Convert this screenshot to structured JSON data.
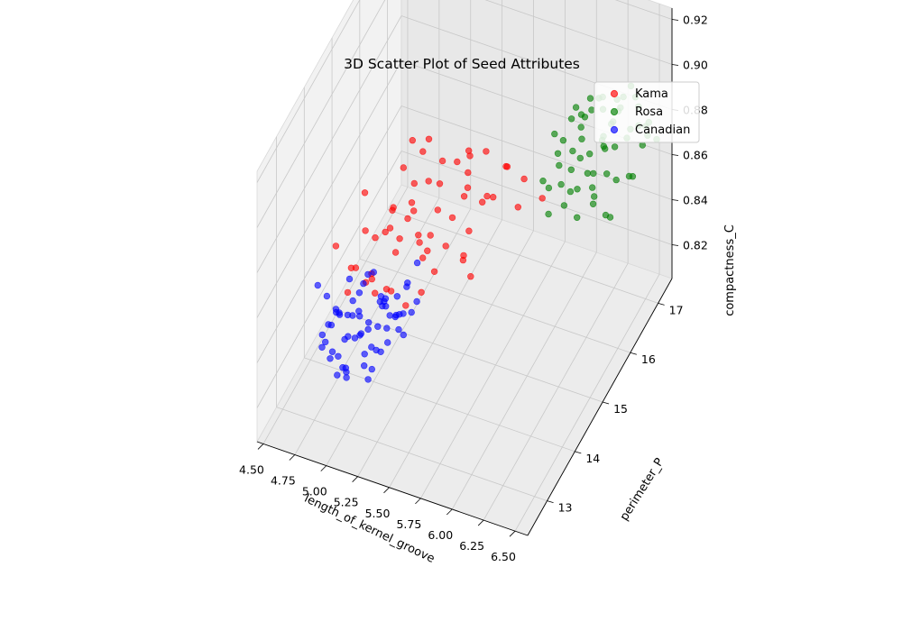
{
  "chart_data": {
    "type": "scatter",
    "dimensions": 3,
    "title": "3D Scatter Plot of Seed Attributes",
    "xlabel": "length_of_kernel_groove",
    "ylabel": "perimeter_P",
    "zlabel": "compactness_C",
    "x_ticks": [
      "4.50",
      "4.75",
      "5.00",
      "5.25",
      "5.50",
      "5.75",
      "6.00",
      "6.25",
      "6.50"
    ],
    "y_ticks": [
      "13",
      "14",
      "15",
      "16",
      "17"
    ],
    "z_ticks": [
      "0.82",
      "0.84",
      "0.86",
      "0.88",
      "0.90",
      "0.92"
    ],
    "xlim": [
      4.45,
      6.6
    ],
    "ylim": [
      12.3,
      17.5
    ],
    "zlim": [
      0.805,
      0.925
    ],
    "grid": true,
    "legend_position": "top-right",
    "series": [
      {
        "name": "Kama",
        "color": "#ff0000",
        "points": [
          [
            5.22,
            13.8,
            0.871
          ],
          [
            5.15,
            14.0,
            0.884
          ],
          [
            5.3,
            14.3,
            0.866
          ],
          [
            5.05,
            13.5,
            0.861
          ],
          [
            5.4,
            14.5,
            0.878
          ],
          [
            5.0,
            13.2,
            0.873
          ],
          [
            5.35,
            14.4,
            0.892
          ],
          [
            5.1,
            13.6,
            0.855
          ],
          [
            5.45,
            14.8,
            0.869
          ],
          [
            5.25,
            14.1,
            0.88
          ],
          [
            4.95,
            13.3,
            0.859
          ],
          [
            5.5,
            15.0,
            0.875
          ],
          [
            5.18,
            13.9,
            0.888
          ],
          [
            5.32,
            14.6,
            0.863
          ],
          [
            5.6,
            15.2,
            0.87
          ],
          [
            5.08,
            13.7,
            0.877
          ],
          [
            5.28,
            14.2,
            0.894
          ],
          [
            5.42,
            14.7,
            0.858
          ],
          [
            5.12,
            13.4,
            0.866
          ],
          [
            5.55,
            14.9,
            0.882
          ],
          [
            5.2,
            14.5,
            0.905
          ],
          [
            5.38,
            14.0,
            0.852
          ],
          [
            5.02,
            13.6,
            0.898
          ],
          [
            5.48,
            15.3,
            0.886
          ],
          [
            5.3,
            13.8,
            0.849
          ],
          [
            5.15,
            14.7,
            0.872
          ],
          [
            5.62,
            15.5,
            0.866
          ],
          [
            5.25,
            13.5,
            0.861
          ],
          [
            4.9,
            13.1,
            0.883
          ],
          [
            5.7,
            15.6,
            0.879
          ],
          [
            5.35,
            14.9,
            0.89
          ],
          [
            5.05,
            14.2,
            0.868
          ],
          [
            5.45,
            13.9,
            0.874
          ],
          [
            5.58,
            14.6,
            0.857
          ],
          [
            5.22,
            15.0,
            0.895
          ],
          [
            5.8,
            15.8,
            0.871
          ],
          [
            5.12,
            14.4,
            0.862
          ],
          [
            5.4,
            15.2,
            0.884
          ],
          [
            4.98,
            13.8,
            0.876
          ],
          [
            5.65,
            14.3,
            0.867
          ],
          [
            5.28,
            13.2,
            0.869
          ],
          [
            5.52,
            15.7,
            0.88
          ],
          [
            5.18,
            14.8,
            0.856
          ],
          [
            5.75,
            14.1,
            0.864
          ],
          [
            5.08,
            13.0,
            0.879
          ],
          [
            5.42,
            15.5,
            0.873
          ],
          [
            5.6,
            16.1,
            0.866
          ],
          [
            5.32,
            14.0,
            0.887
          ],
          [
            5.0,
            14.6,
            0.86
          ],
          [
            5.48,
            13.6,
            0.878
          ],
          [
            5.24,
            15.3,
            0.869
          ],
          [
            5.9,
            16.0,
            0.86
          ],
          [
            5.14,
            13.3,
            0.871
          ],
          [
            5.36,
            15.8,
            0.875
          ],
          [
            5.56,
            14.9,
            0.863
          ],
          [
            5.04,
            14.9,
            0.881
          ],
          [
            5.44,
            14.2,
            0.858
          ],
          [
            5.66,
            15.1,
            0.876
          ],
          [
            5.26,
            14.6,
            0.899
          ],
          [
            5.84,
            15.4,
            0.868
          ]
        ]
      },
      {
        "name": "Rosa",
        "color": "#008000",
        "points": [
          [
            6.0,
            16.3,
            0.881
          ],
          [
            6.1,
            16.5,
            0.89
          ],
          [
            6.2,
            16.8,
            0.874
          ],
          [
            6.3,
            17.0,
            0.886
          ],
          [
            6.05,
            16.0,
            0.869
          ],
          [
            6.15,
            16.6,
            0.896
          ],
          [
            6.25,
            16.9,
            0.88
          ],
          [
            6.4,
            17.2,
            0.884
          ],
          [
            5.95,
            15.8,
            0.873
          ],
          [
            6.35,
            16.7,
            0.892
          ],
          [
            6.08,
            16.2,
            0.862
          ],
          [
            6.22,
            17.1,
            0.876
          ],
          [
            6.45,
            17.3,
            0.87
          ],
          [
            6.12,
            16.4,
            0.887
          ],
          [
            6.28,
            16.6,
            0.865
          ],
          [
            6.02,
            15.9,
            0.893
          ],
          [
            6.38,
            17.0,
            0.878
          ],
          [
            6.18,
            16.1,
            0.881
          ],
          [
            6.5,
            17.4,
            0.867
          ],
          [
            6.06,
            16.7,
            0.874
          ],
          [
            6.32,
            16.3,
            0.889
          ],
          [
            6.24,
            16.5,
            0.9
          ],
          [
            6.14,
            15.7,
            0.868
          ],
          [
            6.42,
            16.9,
            0.86
          ],
          [
            6.0,
            16.6,
            0.884
          ],
          [
            6.48,
            17.1,
            0.879
          ],
          [
            6.2,
            15.9,
            0.872
          ],
          [
            6.34,
            17.2,
            0.892
          ],
          [
            6.1,
            16.8,
            0.866
          ],
          [
            6.26,
            16.0,
            0.878
          ],
          [
            6.04,
            15.6,
            0.876
          ],
          [
            6.44,
            16.6,
            0.884
          ],
          [
            6.16,
            17.0,
            0.888
          ],
          [
            6.36,
            16.2,
            0.857
          ],
          [
            6.08,
            16.4,
            0.895
          ],
          [
            6.3,
            16.8,
            0.873
          ],
          [
            6.22,
            15.8,
            0.862
          ],
          [
            6.46,
            17.3,
            0.876
          ],
          [
            6.12,
            16.1,
            0.883
          ],
          [
            6.4,
            16.4,
            0.869
          ],
          [
            5.98,
            16.2,
            0.877
          ],
          [
            6.28,
            17.2,
            0.886
          ],
          [
            6.18,
            16.6,
            0.853
          ],
          [
            6.52,
            16.8,
            0.878
          ],
          [
            6.06,
            15.5,
            0.867
          ],
          [
            6.34,
            16.7,
            0.897
          ],
          [
            6.24,
            16.3,
            0.871
          ],
          [
            6.14,
            17.1,
            0.88
          ],
          [
            6.42,
            17.0,
            0.893
          ],
          [
            6.02,
            16.5,
            0.864
          ],
          [
            6.32,
            15.9,
            0.875
          ],
          [
            6.2,
            16.9,
            0.868
          ],
          [
            6.48,
            16.5,
            0.87
          ],
          [
            6.1,
            15.7,
            0.885
          ],
          [
            6.38,
            17.3,
            0.873
          ],
          [
            6.26,
            16.2,
            0.86
          ],
          [
            6.16,
            16.6,
            0.891
          ],
          [
            6.44,
            16.0,
            0.862
          ],
          [
            6.04,
            16.9,
            0.879
          ],
          [
            6.3,
            16.4,
            0.882
          ]
        ]
      },
      {
        "name": "Canadian",
        "color": "#0000ff",
        "points": [
          [
            4.85,
            13.0,
            0.862
          ],
          [
            4.95,
            13.3,
            0.849
          ],
          [
            5.05,
            13.6,
            0.841
          ],
          [
            5.15,
            13.8,
            0.836
          ],
          [
            4.9,
            13.1,
            0.855
          ],
          [
            5.0,
            13.5,
            0.845
          ],
          [
            5.1,
            13.7,
            0.838
          ],
          [
            4.8,
            12.9,
            0.868
          ],
          [
            5.2,
            14.0,
            0.832
          ],
          [
            4.88,
            13.2,
            0.851
          ],
          [
            5.02,
            13.4,
            0.858
          ],
          [
            5.12,
            13.9,
            0.843
          ],
          [
            4.92,
            12.8,
            0.84
          ],
          [
            5.22,
            14.2,
            0.847
          ],
          [
            4.98,
            13.6,
            0.834
          ],
          [
            5.08,
            13.3,
            0.829
          ],
          [
            4.86,
            13.4,
            0.846
          ],
          [
            5.18,
            13.5,
            0.853
          ],
          [
            4.94,
            13.0,
            0.837
          ],
          [
            5.28,
            14.1,
            0.839
          ],
          [
            5.04,
            12.9,
            0.85
          ],
          [
            4.82,
            13.3,
            0.842
          ],
          [
            5.14,
            14.3,
            0.831
          ],
          [
            5.0,
            13.8,
            0.857
          ],
          [
            5.24,
            13.7,
            0.845
          ],
          [
            4.96,
            13.2,
            0.826
          ],
          [
            5.1,
            13.1,
            0.848
          ],
          [
            4.88,
            12.7,
            0.852
          ],
          [
            5.2,
            13.6,
            0.835
          ],
          [
            5.06,
            14.0,
            0.844
          ],
          [
            4.92,
            13.5,
            0.86
          ],
          [
            5.16,
            13.2,
            0.841
          ],
          [
            5.02,
            12.8,
            0.838
          ],
          [
            5.26,
            13.9,
            0.833
          ],
          [
            4.84,
            13.1,
            0.847
          ],
          [
            5.12,
            13.4,
            0.826
          ],
          [
            4.98,
            14.1,
            0.851
          ],
          [
            5.22,
            13.1,
            0.843
          ],
          [
            4.9,
            13.7,
            0.839
          ],
          [
            5.08,
            12.6,
            0.856
          ],
          [
            5.3,
            14.2,
            0.842
          ],
          [
            4.94,
            13.3,
            0.821
          ],
          [
            5.14,
            13.8,
            0.849
          ],
          [
            5.0,
            13.0,
            0.833
          ],
          [
            4.86,
            12.9,
            0.844
          ],
          [
            5.18,
            14.0,
            0.838
          ],
          [
            5.04,
            13.5,
            0.829
          ],
          [
            4.96,
            12.7,
            0.846
          ],
          [
            5.24,
            13.5,
            0.85
          ],
          [
            4.82,
            13.6,
            0.84
          ],
          [
            5.1,
            14.4,
            0.836
          ],
          [
            5.06,
            13.2,
            0.855
          ],
          [
            4.92,
            14.0,
            0.847
          ],
          [
            5.2,
            12.9,
            0.834
          ],
          [
            5.14,
            13.6,
            0.852
          ],
          [
            4.88,
            13.8,
            0.843
          ],
          [
            5.02,
            12.6,
            0.839
          ],
          [
            5.28,
            13.8,
            0.845
          ],
          [
            4.98,
            13.9,
            0.83
          ],
          [
            5.16,
            14.5,
            0.841
          ],
          [
            5.08,
            13.9,
            0.822
          ],
          [
            4.9,
            12.6,
            0.849
          ],
          [
            5.26,
            14.4,
            0.854
          ],
          [
            5.04,
            14.2,
            0.837
          ],
          [
            4.94,
            13.6,
            0.832
          ]
        ]
      }
    ]
  }
}
